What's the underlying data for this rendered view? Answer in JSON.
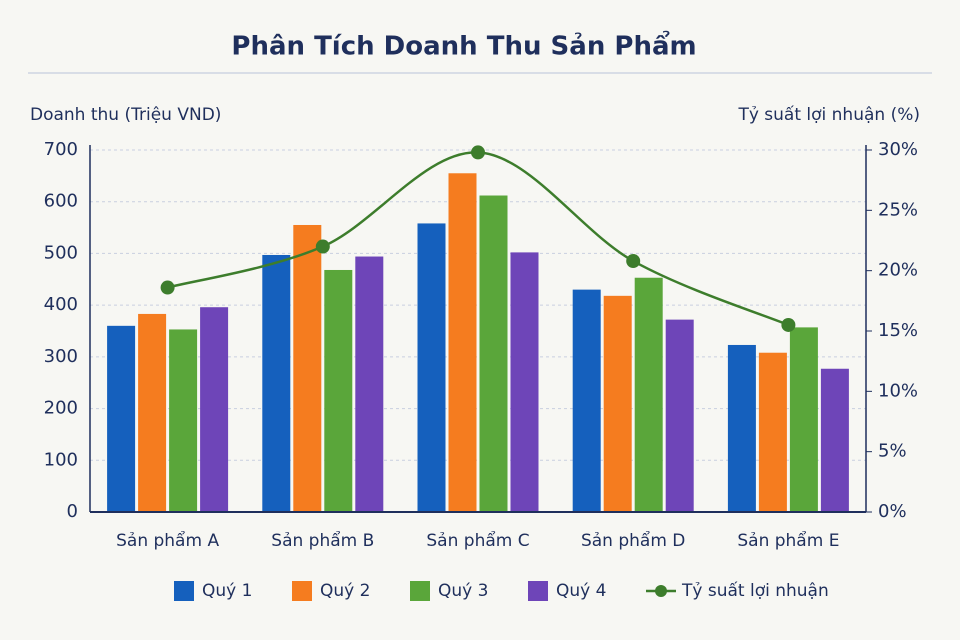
{
  "chart_data": {
    "type": "bar",
    "title": "Phân Tích Doanh Thu Sản Phẩm",
    "y_label": "Doanh thu (Triệu VND)",
    "y2_label": "Tỷ suất lợi nhuận (%)",
    "categories": [
      "Sản phẩm A",
      "Sản phẩm B",
      "Sản phẩm C",
      "Sản phẩm D",
      "Sản phẩm E"
    ],
    "series": [
      {
        "name": "Quý 1",
        "color": "#1560bd",
        "values": [
          360,
          497,
          558,
          430,
          323
        ]
      },
      {
        "name": "Quý 2",
        "color": "#f57c1f",
        "values": [
          383,
          555,
          655,
          418,
          308
        ]
      },
      {
        "name": "Quý 3",
        "color": "#5aa63a",
        "values": [
          353,
          468,
          612,
          453,
          357
        ]
      },
      {
        "name": "Quý 4",
        "color": "#6e45b8",
        "values": [
          396,
          494,
          502,
          372,
          277
        ]
      },
      {
        "name": "Tỷ suất lợi nhuận",
        "color": "#3d7d2c",
        "type": "line",
        "axis": "y2",
        "values": [
          18.6,
          22,
          29.8,
          20.8,
          15.5
        ]
      }
    ],
    "ylim": [
      0,
      700
    ],
    "yticks": [
      0,
      100,
      200,
      300,
      400,
      500,
      600,
      700
    ],
    "y2lim": [
      0,
      30
    ],
    "y2ticks": [
      {
        "value": 0,
        "label": "0%"
      },
      {
        "value": 5,
        "label": "5%"
      },
      {
        "value": 10,
        "label": "10%"
      },
      {
        "value": 15,
        "label": "15%"
      },
      {
        "value": 20,
        "label": "20%"
      },
      {
        "value": 25,
        "label": "25%"
      },
      {
        "value": 30,
        "label": "30%"
      }
    ],
    "grid": true
  }
}
